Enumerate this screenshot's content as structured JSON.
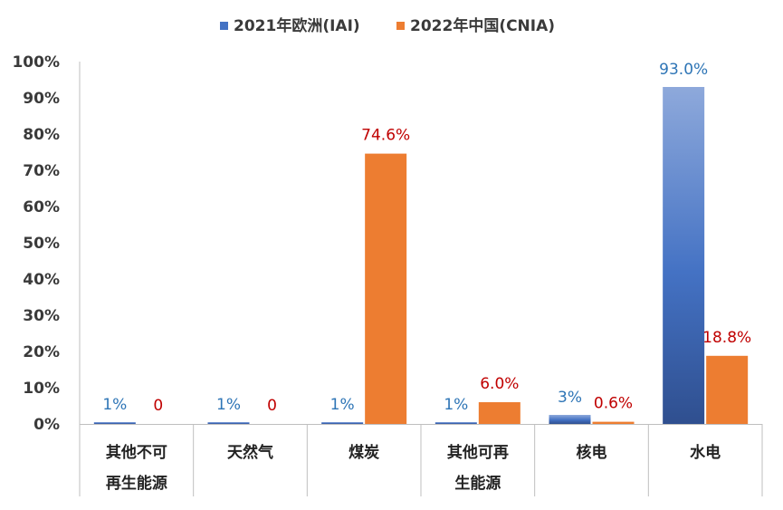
{
  "chart_data": {
    "type": "bar",
    "categories": [
      [
        "其他不可",
        "再生能源"
      ],
      [
        "天然气"
      ],
      [
        "煤炭"
      ],
      [
        "其他可再",
        "生能源"
      ],
      [
        "核电"
      ],
      [
        "水电"
      ]
    ],
    "series": [
      {
        "name": "2021年欧洲(IAI)",
        "values": [
          0.5,
          0.5,
          0.5,
          0.5,
          2.5,
          93.0
        ],
        "labels": [
          "1%",
          "1%",
          "1%",
          "1%",
          "3%",
          "93.0%"
        ],
        "label_color": "#2e75b6",
        "color_light": "#8ea9db",
        "color_dark": "#2f4f8f",
        "legend_color": "#4472c4"
      },
      {
        "name": "2022年中国(CNIA)",
        "values": [
          0,
          0,
          74.6,
          6.0,
          0.6,
          18.8
        ],
        "labels": [
          "0",
          "0",
          "74.6%",
          "6.0%",
          "0.6%",
          "18.8%"
        ],
        "label_color": "#c00000",
        "color": "#ed7d31",
        "legend_color": "#ed7d31"
      }
    ],
    "ylim": [
      0,
      100
    ],
    "yticks": [
      0,
      10,
      20,
      30,
      40,
      50,
      60,
      70,
      80,
      90,
      100
    ],
    "ytick_labels": [
      "0%",
      "10%",
      "20%",
      "30%",
      "40%",
      "50%",
      "60%",
      "70%",
      "80%",
      "90%",
      "100%"
    ],
    "legend_position": "top-center",
    "grid": false
  }
}
